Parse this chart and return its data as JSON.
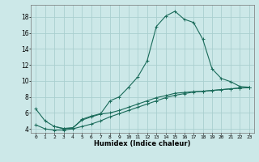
{
  "xlabel": "Humidex (Indice chaleur)",
  "bg_color": "#cce8e8",
  "grid_color": "#aacfcf",
  "line_color": "#1a6b5a",
  "xlim": [
    -0.5,
    23.5
  ],
  "ylim": [
    3.5,
    19.5
  ],
  "xticks": [
    0,
    1,
    2,
    3,
    4,
    5,
    6,
    7,
    8,
    9,
    10,
    11,
    12,
    13,
    14,
    15,
    16,
    17,
    18,
    19,
    20,
    21,
    22,
    23
  ],
  "yticks": [
    4,
    6,
    8,
    10,
    12,
    14,
    16,
    18
  ],
  "series1_x": [
    0,
    1,
    2,
    3,
    4,
    5,
    6,
    7,
    8,
    9,
    10,
    11,
    12,
    13,
    14,
    15,
    16,
    17,
    18,
    19,
    20,
    21,
    22,
    23
  ],
  "series1_y": [
    6.5,
    5.0,
    4.3,
    4.0,
    4.1,
    5.2,
    5.6,
    5.9,
    7.5,
    8.0,
    9.2,
    10.5,
    12.5,
    16.8,
    18.1,
    18.7,
    17.7,
    17.3,
    15.2,
    11.5,
    10.3,
    9.9,
    9.3,
    9.2
  ],
  "series2_x": [
    0,
    1,
    2,
    3,
    4,
    5,
    6,
    7,
    8,
    9,
    10,
    11,
    12,
    13,
    14,
    15,
    16,
    17,
    18,
    19,
    20,
    21,
    22,
    23
  ],
  "series2_y": [
    4.5,
    4.0,
    3.85,
    3.85,
    4.0,
    4.3,
    4.6,
    5.0,
    5.5,
    5.9,
    6.3,
    6.7,
    7.1,
    7.5,
    7.9,
    8.2,
    8.4,
    8.6,
    8.7,
    8.8,
    8.9,
    9.0,
    9.1,
    9.15
  ],
  "series3_x": [
    2,
    3,
    4,
    5,
    6,
    7,
    8,
    9,
    10,
    11,
    12,
    13,
    14,
    15,
    16,
    17,
    18,
    19,
    20,
    21,
    22,
    23
  ],
  "series3_y": [
    4.3,
    4.05,
    4.15,
    5.1,
    5.5,
    5.85,
    6.0,
    6.3,
    6.7,
    7.1,
    7.5,
    7.9,
    8.15,
    8.45,
    8.55,
    8.65,
    8.7,
    8.8,
    8.9,
    9.0,
    9.1,
    9.15
  ]
}
